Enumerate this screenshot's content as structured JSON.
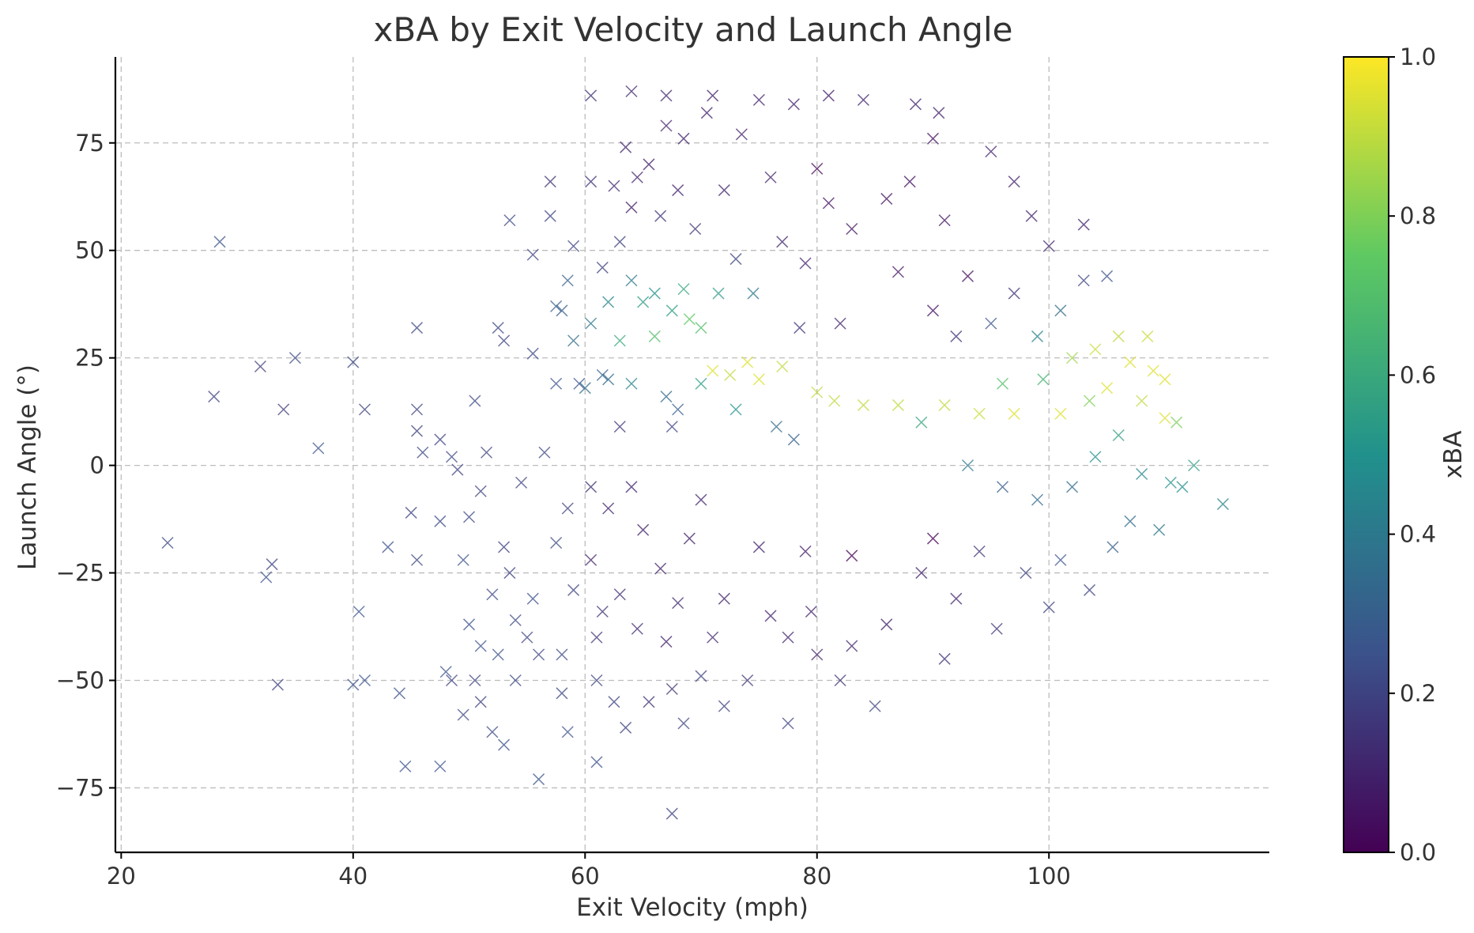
{
  "chart_data": {
    "type": "scatter",
    "title": "xBA by Exit Velocity and Launch Angle",
    "xlabel": "Exit Velocity (mph)",
    "ylabel": "Launch Angle (°)",
    "xlim": [
      19.5,
      119.0
    ],
    "ylim": [
      -90,
      95
    ],
    "xticks": [
      20,
      40,
      60,
      80,
      100
    ],
    "xtick_labels": [
      "20",
      "40",
      "60",
      "80",
      "100"
    ],
    "yticks": [
      -75,
      -50,
      -25,
      0,
      25,
      50,
      75
    ],
    "ytick_labels": [
      "−75",
      "−50",
      "−25",
      "0",
      "25",
      "50",
      "75"
    ],
    "grid": true,
    "marker": "x",
    "colormap": "viridis",
    "colormap_stops": [
      "#440154",
      "#3b528b",
      "#21918c",
      "#5ec962",
      "#fde725"
    ],
    "colorbar": {
      "label": "xBA",
      "range": [
        0.0,
        1.0
      ],
      "ticks": [
        0.0,
        0.2,
        0.4,
        0.6,
        0.8,
        1.0
      ],
      "tick_labels": [
        "0.0",
        "0.2",
        "0.4",
        "0.6",
        "0.8",
        "1.0"
      ]
    },
    "points": [
      [
        24,
        -18,
        0.22
      ],
      [
        28,
        16,
        0.2
      ],
      [
        28.5,
        52,
        0.25
      ],
      [
        32,
        23,
        0.18
      ],
      [
        32.5,
        -26,
        0.25
      ],
      [
        33,
        -23,
        0.2
      ],
      [
        34,
        13,
        0.18
      ],
      [
        35,
        25,
        0.22
      ],
      [
        33.5,
        -51,
        0.2
      ],
      [
        37,
        4,
        0.25
      ],
      [
        40,
        24,
        0.22
      ],
      [
        40,
        -51,
        0.25
      ],
      [
        41,
        13,
        0.2
      ],
      [
        40.5,
        -34,
        0.25
      ],
      [
        41,
        -50,
        0.25
      ],
      [
        43,
        -19,
        0.25
      ],
      [
        44,
        -53,
        0.25
      ],
      [
        45,
        -11,
        0.2
      ],
      [
        45.5,
        32,
        0.22
      ],
      [
        45.5,
        8,
        0.2
      ],
      [
        45.5,
        13,
        0.2
      ],
      [
        46,
        3,
        0.22
      ],
      [
        45.5,
        -22,
        0.22
      ],
      [
        44.5,
        -70,
        0.25
      ],
      [
        47.5,
        6,
        0.2
      ],
      [
        47.5,
        -13,
        0.22
      ],
      [
        48,
        -48,
        0.25
      ],
      [
        48.5,
        2,
        0.22
      ],
      [
        49,
        -1,
        0.2
      ],
      [
        48.5,
        -50,
        0.2
      ],
      [
        47.5,
        -70,
        0.25
      ],
      [
        49.5,
        -22,
        0.25
      ],
      [
        50,
        -12,
        0.22
      ],
      [
        50,
        -37,
        0.25
      ],
      [
        50.5,
        -50,
        0.2
      ],
      [
        49.5,
        -58,
        0.22
      ],
      [
        50.5,
        15,
        0.22
      ],
      [
        51,
        -6,
        0.2
      ],
      [
        51,
        -42,
        0.25
      ],
      [
        51.5,
        3,
        0.2
      ],
      [
        51,
        -55,
        0.2
      ],
      [
        52,
        -30,
        0.22
      ],
      [
        52,
        -62,
        0.22
      ],
      [
        52.5,
        -44,
        0.25
      ],
      [
        52.5,
        32,
        0.22
      ],
      [
        53,
        -19,
        0.2
      ],
      [
        53,
        29,
        0.2
      ],
      [
        53.5,
        57,
        0.22
      ],
      [
        53,
        -65,
        0.25
      ],
      [
        53.5,
        -25,
        0.2
      ],
      [
        54,
        -50,
        0.22
      ],
      [
        54.5,
        -4,
        0.2
      ],
      [
        54,
        -36,
        0.22
      ],
      [
        55,
        -40,
        0.2
      ],
      [
        55.5,
        26,
        0.22
      ],
      [
        55.5,
        -31,
        0.25
      ],
      [
        55.5,
        49,
        0.2
      ],
      [
        56,
        -73,
        0.25
      ],
      [
        56.5,
        3,
        0.22
      ],
      [
        56,
        -44,
        0.2
      ],
      [
        57,
        66,
        0.15
      ],
      [
        57,
        58,
        0.2
      ],
      [
        57.5,
        37,
        0.3
      ],
      [
        57.5,
        19,
        0.25
      ],
      [
        57.5,
        -18,
        0.22
      ],
      [
        58,
        36,
        0.3
      ],
      [
        58,
        -44,
        0.22
      ],
      [
        58.5,
        43,
        0.3
      ],
      [
        58.5,
        -10,
        0.2
      ],
      [
        58,
        -53,
        0.22
      ],
      [
        58.5,
        -62,
        0.25
      ],
      [
        59,
        51,
        0.2
      ],
      [
        59,
        29,
        0.35
      ],
      [
        59,
        -29,
        0.2
      ],
      [
        59.5,
        19,
        0.25
      ],
      [
        60,
        18,
        0.35
      ],
      [
        60.5,
        86,
        0.15
      ],
      [
        60.5,
        66,
        0.15
      ],
      [
        60.5,
        33,
        0.4
      ],
      [
        60.5,
        -5,
        0.15
      ],
      [
        60.5,
        -22,
        0.1
      ],
      [
        61,
        -40,
        0.15
      ],
      [
        61,
        -50,
        0.2
      ],
      [
        61,
        -69,
        0.25
      ],
      [
        61.5,
        46,
        0.2
      ],
      [
        61.5,
        21,
        0.3
      ],
      [
        61.5,
        -34,
        0.15
      ],
      [
        62,
        38,
        0.45
      ],
      [
        62,
        20,
        0.35
      ],
      [
        62,
        -10,
        0.1
      ],
      [
        62.5,
        65,
        0.12
      ],
      [
        62.5,
        -55,
        0.2
      ],
      [
        63,
        29,
        0.6
      ],
      [
        63,
        52,
        0.2
      ],
      [
        63,
        9,
        0.15
      ],
      [
        63,
        -30,
        0.12
      ],
      [
        63.5,
        74,
        0.1
      ],
      [
        63.5,
        -61,
        0.2
      ],
      [
        64,
        87,
        0.12
      ],
      [
        64,
        60,
        0.08
      ],
      [
        64,
        43,
        0.4
      ],
      [
        64,
        19,
        0.45
      ],
      [
        64,
        -5,
        0.1
      ],
      [
        64.5,
        67,
        0.1
      ],
      [
        64.5,
        -38,
        0.12
      ],
      [
        65,
        38,
        0.55
      ],
      [
        65,
        -15,
        0.1
      ],
      [
        65.5,
        70,
        0.08
      ],
      [
        65.5,
        -55,
        0.15
      ],
      [
        66,
        30,
        0.7
      ],
      [
        66,
        40,
        0.5
      ],
      [
        66.5,
        58,
        0.15
      ],
      [
        66.5,
        -24,
        0.08
      ],
      [
        67,
        86,
        0.12
      ],
      [
        67,
        79,
        0.1
      ],
      [
        67,
        16,
        0.35
      ],
      [
        67,
        -41,
        0.1
      ],
      [
        67.5,
        36,
        0.55
      ],
      [
        67.5,
        9,
        0.2
      ],
      [
        67.5,
        -52,
        0.15
      ],
      [
        67.5,
        -81,
        0.2
      ],
      [
        68,
        64,
        0.1
      ],
      [
        68,
        13,
        0.3
      ],
      [
        68,
        -32,
        0.12
      ],
      [
        68.5,
        76,
        0.1
      ],
      [
        68.5,
        41,
        0.6
      ],
      [
        68.5,
        -60,
        0.2
      ],
      [
        69,
        34,
        0.75
      ],
      [
        69,
        -17,
        0.1
      ],
      [
        69.5,
        55,
        0.15
      ],
      [
        70,
        32,
        0.7
      ],
      [
        70,
        19,
        0.55
      ],
      [
        70,
        -8,
        0.1
      ],
      [
        70,
        -49,
        0.2
      ],
      [
        70.5,
        82,
        0.1
      ],
      [
        71,
        22,
        0.95
      ],
      [
        71,
        86,
        0.1
      ],
      [
        71,
        -40,
        0.12
      ],
      [
        71.5,
        40,
        0.55
      ],
      [
        72,
        64,
        0.1
      ],
      [
        72,
        -31,
        0.1
      ],
      [
        72,
        -56,
        0.2
      ],
      [
        72.5,
        21,
        0.9
      ],
      [
        73,
        48,
        0.2
      ],
      [
        73,
        13,
        0.5
      ],
      [
        73.5,
        77,
        0.1
      ],
      [
        74,
        24,
        0.95
      ],
      [
        74,
        -50,
        0.15
      ],
      [
        74.5,
        40,
        0.4
      ],
      [
        75,
        85,
        0.1
      ],
      [
        75,
        20,
        0.95
      ],
      [
        75,
        -19,
        0.1
      ],
      [
        76,
        67,
        0.1
      ],
      [
        76,
        -35,
        0.1
      ],
      [
        76.5,
        9,
        0.35
      ],
      [
        77,
        23,
        0.9
      ],
      [
        77,
        52,
        0.12
      ],
      [
        77.5,
        -40,
        0.1
      ],
      [
        77.5,
        -60,
        0.2
      ],
      [
        78,
        84,
        0.1
      ],
      [
        78,
        6,
        0.3
      ],
      [
        78.5,
        32,
        0.15
      ],
      [
        79,
        -20,
        0.08
      ],
      [
        79,
        47,
        0.1
      ],
      [
        79.5,
        -34,
        0.08
      ],
      [
        80,
        69,
        0.0
      ],
      [
        80,
        17,
        0.9
      ],
      [
        80,
        -44,
        0.1
      ],
      [
        81,
        86,
        0.08
      ],
      [
        81,
        61,
        0.05
      ],
      [
        81.5,
        15,
        0.9
      ],
      [
        82,
        33,
        0.1
      ],
      [
        82,
        -50,
        0.15
      ],
      [
        83,
        -21,
        0.0
      ],
      [
        83,
        55,
        0.05
      ],
      [
        83,
        -42,
        0.1
      ],
      [
        84,
        85,
        0.1
      ],
      [
        84,
        14,
        0.9
      ],
      [
        85,
        -56,
        0.2
      ],
      [
        86,
        62,
        0.05
      ],
      [
        86,
        -37,
        0.08
      ],
      [
        87,
        45,
        0.05
      ],
      [
        87,
        14,
        0.9
      ],
      [
        88,
        66,
        0.05
      ],
      [
        88.5,
        84,
        0.1
      ],
      [
        89,
        10,
        0.6
      ],
      [
        89,
        -25,
        0.1
      ],
      [
        90,
        36,
        0.05
      ],
      [
        90,
        76,
        0.05
      ],
      [
        90,
        -17,
        0.0
      ],
      [
        90.5,
        82,
        0.1
      ],
      [
        91,
        57,
        0.05
      ],
      [
        91,
        14,
        0.9
      ],
      [
        91,
        -45,
        0.15
      ],
      [
        92,
        30,
        0.15
      ],
      [
        92,
        -31,
        0.1
      ],
      [
        93,
        44,
        0.05
      ],
      [
        93,
        0,
        0.4
      ],
      [
        94,
        12,
        0.92
      ],
      [
        94,
        -20,
        0.15
      ],
      [
        95,
        73,
        0.1
      ],
      [
        95,
        33,
        0.25
      ],
      [
        95.5,
        -38,
        0.15
      ],
      [
        96,
        19,
        0.7
      ],
      [
        96,
        -5,
        0.3
      ],
      [
        97,
        66,
        0.1
      ],
      [
        97,
        40,
        0.15
      ],
      [
        97,
        12,
        0.95
      ],
      [
        98,
        -25,
        0.2
      ],
      [
        98.5,
        58,
        0.1
      ],
      [
        99,
        30,
        0.45
      ],
      [
        99,
        -8,
        0.35
      ],
      [
        99.5,
        20,
        0.65
      ],
      [
        100,
        -33,
        0.2
      ],
      [
        100,
        51,
        0.1
      ],
      [
        101,
        12,
        0.95
      ],
      [
        101,
        36,
        0.35
      ],
      [
        101,
        -22,
        0.25
      ],
      [
        102,
        25,
        0.85
      ],
      [
        102,
        -5,
        0.35
      ],
      [
        103,
        56,
        0.1
      ],
      [
        103,
        43,
        0.2
      ],
      [
        103.5,
        15,
        0.8
      ],
      [
        103.5,
        -29,
        0.2
      ],
      [
        104,
        27,
        0.92
      ],
      [
        104,
        2,
        0.5
      ],
      [
        105,
        44,
        0.25
      ],
      [
        105,
        18,
        0.95
      ],
      [
        105.5,
        -19,
        0.3
      ],
      [
        106,
        30,
        0.9
      ],
      [
        106,
        7,
        0.55
      ],
      [
        107,
        24,
        0.95
      ],
      [
        107,
        -13,
        0.35
      ],
      [
        108,
        15,
        0.9
      ],
      [
        108,
        -2,
        0.45
      ],
      [
        108.5,
        30,
        0.92
      ],
      [
        109,
        22,
        0.95
      ],
      [
        109.5,
        -15,
        0.4
      ],
      [
        110,
        11,
        0.95
      ],
      [
        110,
        20,
        0.95
      ],
      [
        110.5,
        -4,
        0.5
      ],
      [
        111,
        10,
        0.8
      ],
      [
        111.5,
        -5,
        0.5
      ],
      [
        112.5,
        0,
        0.55
      ],
      [
        115,
        -9,
        0.45
      ]
    ]
  }
}
